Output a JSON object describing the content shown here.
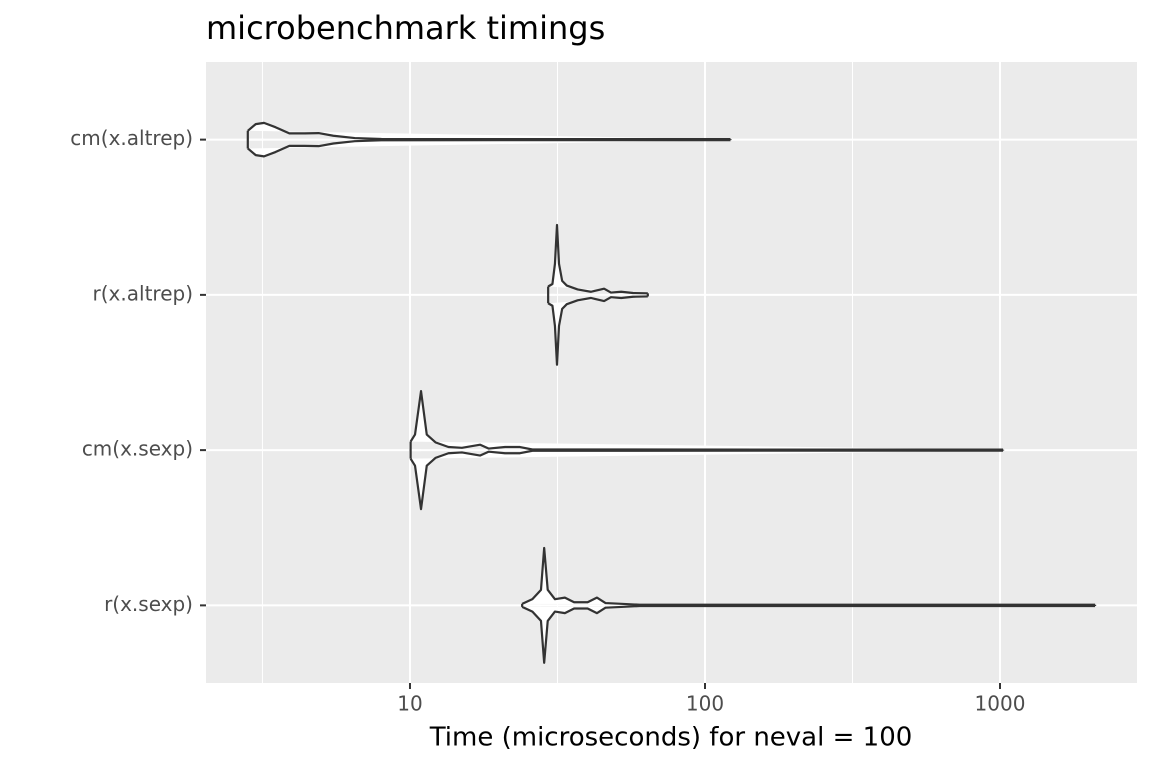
{
  "chart_data": {
    "type": "violin",
    "title": "microbenchmark timings",
    "x_label": "Time (microseconds) for neval = 100",
    "categories": [
      "cm(x.altrep)",
      "r(x.altrep)",
      "cm(x.sexp)",
      "r(x.sexp)"
    ],
    "violins": [
      {
        "x": [
          2.82,
          3.0,
          3.2,
          3.5,
          3.9,
          4.4,
          4.9,
          5.5,
          6.5,
          8,
          20,
          122
        ],
        "width": [
          0.057,
          0.1,
          0.108,
          0.08,
          0.04,
          0.04,
          0.042,
          0.025,
          0.01,
          0.004,
          0.003,
          0.003
        ]
      },
      {
        "x": [
          29.4,
          30.4,
          31.0,
          31.5,
          32.0,
          32.8,
          34,
          37,
          41,
          45.5,
          48,
          52,
          57,
          64
        ],
        "width": [
          0.054,
          0.07,
          0.2,
          0.45,
          0.2,
          0.09,
          0.06,
          0.035,
          0.02,
          0.04,
          0.015,
          0.02,
          0.012,
          0.01
        ]
      },
      {
        "x": [
          10.05,
          10.4,
          10.9,
          11.4,
          12.2,
          13.5,
          15,
          17.3,
          18.5,
          21,
          23.6,
          26,
          1024
        ],
        "width": [
          0.055,
          0.1,
          0.38,
          0.1,
          0.05,
          0.02,
          0.015,
          0.035,
          0.01,
          0.02,
          0.02,
          0.004,
          0.003
        ]
      },
      {
        "x": [
          24,
          26,
          27.8,
          28.5,
          29.3,
          31,
          33.5,
          36,
          40,
          43,
          46,
          52,
          60,
          2100
        ],
        "width": [
          0.01,
          0.04,
          0.1,
          0.37,
          0.1,
          0.04,
          0.05,
          0.02,
          0.02,
          0.05,
          0.015,
          0.01,
          0.004,
          0.004
        ]
      }
    ],
    "color": "#333333",
    "fill": "#ffffff",
    "log_x": true,
    "grid": true,
    "xlim": [
      2.035,
      2913
    ],
    "xticks": [
      10,
      100,
      1000
    ],
    "x_minor_grid": [
      3.162,
      31.62,
      316.2
    ]
  }
}
